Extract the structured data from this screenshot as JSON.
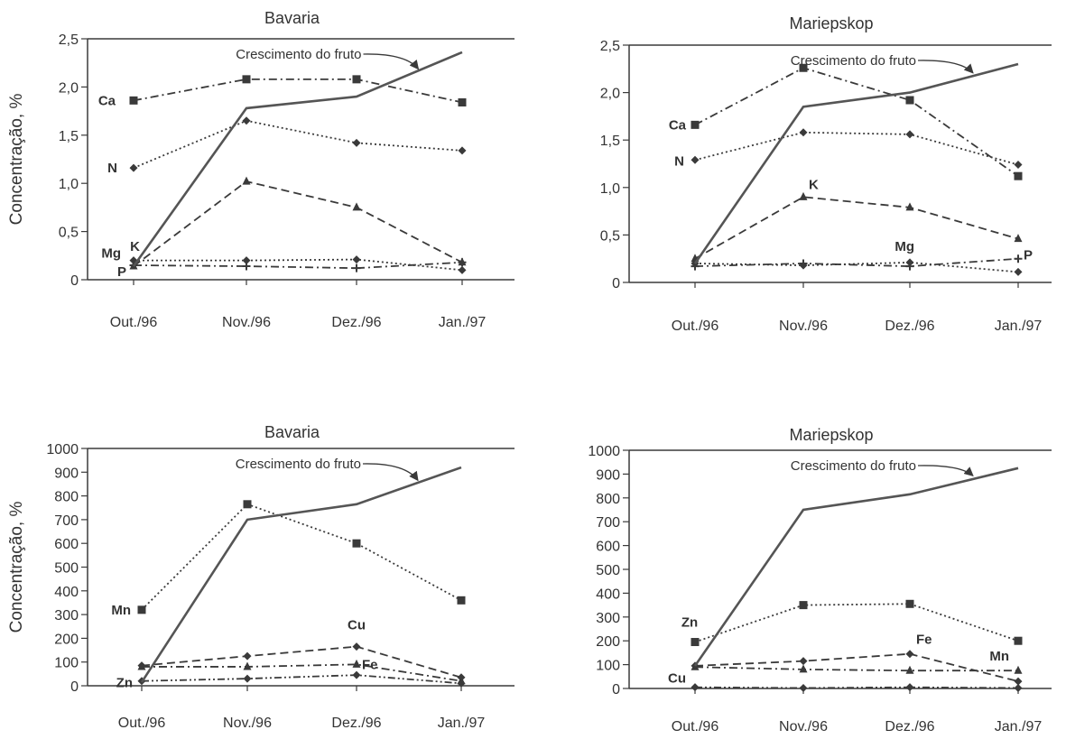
{
  "figure": {
    "colors": {
      "ink": "#3a3a3a",
      "growth": "#555555",
      "background": "#ffffff"
    }
  },
  "chart_data": [
    {
      "type": "line",
      "title": "Bavaria",
      "ylabel": "Concentração, %",
      "xlabel": "",
      "categories": [
        "Out./96",
        "Nov./96",
        "Dez./96",
        "Jan./97"
      ],
      "ylim": [
        0,
        2.5
      ],
      "yticks": [
        "0",
        "0,5",
        "1,0",
        "1,5",
        "2,0",
        "2,5"
      ],
      "ytick_values": [
        0,
        0.5,
        1.0,
        1.5,
        2.0,
        2.5
      ],
      "grid": false,
      "series": [
        {
          "name": "Ca",
          "values": [
            1.86,
            2.08,
            2.08,
            1.84
          ],
          "style": "dashdot",
          "marker": "square"
        },
        {
          "name": "N",
          "values": [
            1.16,
            1.65,
            1.42,
            1.34
          ],
          "style": "dotted",
          "marker": "diamond"
        },
        {
          "name": "K",
          "values": [
            0.14,
            1.02,
            0.75,
            0.18
          ],
          "style": "dashed",
          "marker": "triangle"
        },
        {
          "name": "Mg",
          "values": [
            0.2,
            0.2,
            0.21,
            0.1
          ],
          "style": "dotted",
          "marker": "diamond"
        },
        {
          "name": "P",
          "values": [
            0.15,
            0.14,
            0.12,
            0.18
          ],
          "style": "dashdot",
          "marker": "plus"
        }
      ],
      "growth_curve": {
        "values": [
          0.14,
          1.78,
          1.9,
          2.36
        ]
      },
      "annotation": "Crescimento do fruto"
    },
    {
      "type": "line",
      "title": "Mariepskop",
      "ylabel": "",
      "xlabel": "",
      "categories": [
        "Out./96",
        "Nov./96",
        "Dez./96",
        "Jan./97"
      ],
      "ylim": [
        0,
        2.5
      ],
      "yticks": [
        "0",
        "0,5",
        "1,0",
        "1,5",
        "2,0",
        "2,5"
      ],
      "ytick_values": [
        0,
        0.5,
        1.0,
        1.5,
        2.0,
        2.5
      ],
      "grid": false,
      "series": [
        {
          "name": "Ca",
          "values": [
            1.66,
            2.26,
            1.92,
            1.12
          ],
          "style": "dashdot",
          "marker": "square"
        },
        {
          "name": "N",
          "values": [
            1.29,
            1.58,
            1.56,
            1.24
          ],
          "style": "dotted",
          "marker": "diamond"
        },
        {
          "name": "K",
          "values": [
            0.25,
            0.9,
            0.79,
            0.46
          ],
          "style": "dashed",
          "marker": "triangle"
        },
        {
          "name": "Mg",
          "values": [
            0.2,
            0.18,
            0.21,
            0.11
          ],
          "style": "dotted",
          "marker": "diamond"
        },
        {
          "name": "P",
          "values": [
            0.17,
            0.2,
            0.17,
            0.25
          ],
          "style": "dashdot",
          "marker": "plus"
        }
      ],
      "growth_curve": {
        "values": [
          0.2,
          1.85,
          2.0,
          2.3
        ]
      },
      "annotation": "Crescimento do fruto"
    },
    {
      "type": "line",
      "title": "Bavaria",
      "ylabel": "Concentração, %",
      "xlabel": "",
      "categories": [
        "Out./96",
        "Nov./96",
        "Dez./96",
        "Jan./97"
      ],
      "ylim": [
        0,
        1000
      ],
      "yticks": [
        "0",
        "100",
        "200",
        "300",
        "400",
        "500",
        "600",
        "700",
        "800",
        "900",
        "1000"
      ],
      "ytick_values": [
        0,
        100,
        200,
        300,
        400,
        500,
        600,
        700,
        800,
        900,
        1000
      ],
      "grid": false,
      "series": [
        {
          "name": "Mn",
          "values": [
            320,
            765,
            600,
            360
          ],
          "style": "dotted",
          "marker": "square"
        },
        {
          "name": "Cu",
          "values": [
            85,
            125,
            165,
            35
          ],
          "style": "dashed",
          "marker": "diamond"
        },
        {
          "name": "Fe",
          "values": [
            80,
            80,
            90,
            20
          ],
          "style": "dashdot",
          "marker": "triangle"
        },
        {
          "name": "Zn",
          "values": [
            20,
            30,
            45,
            10
          ],
          "style": "dashdotdot",
          "marker": "diamond"
        }
      ],
      "growth_curve": {
        "values": [
          15,
          700,
          765,
          920
        ]
      },
      "annotation": "Crescimento do fruto"
    },
    {
      "type": "line",
      "title": "Mariepskop",
      "ylabel": "",
      "xlabel": "",
      "categories": [
        "Out./96",
        "Nov./96",
        "Dez./96",
        "Jan./97"
      ],
      "ylim": [
        0,
        1000
      ],
      "yticks": [
        "0",
        "100",
        "200",
        "300",
        "400",
        "500",
        "600",
        "700",
        "800",
        "900",
        "1000"
      ],
      "ytick_values": [
        0,
        100,
        200,
        300,
        400,
        500,
        600,
        700,
        800,
        900,
        1000
      ],
      "grid": false,
      "series": [
        {
          "name": "Zn",
          "values": [
            195,
            350,
            355,
            200
          ],
          "style": "dotted",
          "marker": "square"
        },
        {
          "name": "Fe",
          "values": [
            95,
            115,
            145,
            30
          ],
          "style": "dashed",
          "marker": "diamond"
        },
        {
          "name": "Mn",
          "values": [
            90,
            80,
            75,
            75
          ],
          "style": "dashdot",
          "marker": "triangle"
        },
        {
          "name": "Cu",
          "values": [
            5,
            2,
            5,
            2
          ],
          "style": "dashdotdot",
          "marker": "diamond"
        }
      ],
      "growth_curve": {
        "values": [
          95,
          750,
          815,
          925
        ]
      },
      "annotation": "Crescimento do fruto"
    }
  ]
}
